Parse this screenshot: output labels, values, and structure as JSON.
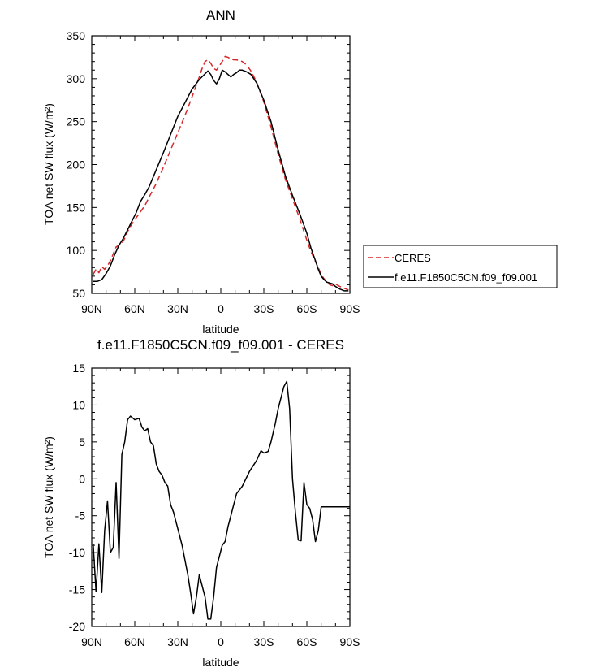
{
  "chart_data": [
    {
      "type": "line",
      "title": "ANN",
      "xlabel": "latitude",
      "ylabel": "TOA net SW flux (W/m²)",
      "xlim": [
        -90,
        90
      ],
      "ylim": [
        50,
        350
      ],
      "x_tick_values": [
        -90,
        -60,
        -30,
        0,
        30,
        60,
        90
      ],
      "x_tick_labels": [
        "90N",
        "60N",
        "30N",
        "0",
        "30S",
        "60S",
        "90S"
      ],
      "y_tick_values": [
        50,
        100,
        150,
        200,
        250,
        300,
        350
      ],
      "y_tick_labels": [
        "50",
        "100",
        "150",
        "200",
        "250",
        "300",
        "350"
      ],
      "grid": false,
      "legend_position": "right",
      "colors": {
        "CERES": "#d62728",
        "model": "#000000"
      },
      "series": [
        {
          "name": "CERES",
          "style": "dashed",
          "x": [
            -89,
            -87,
            -85,
            -83,
            -81,
            -79,
            -77,
            -75,
            -73,
            -71,
            -69,
            -67,
            -65,
            -63,
            -61,
            -59,
            -56,
            -53,
            -50,
            -45,
            -40,
            -35,
            -30,
            -25,
            -20,
            -17,
            -15,
            -13,
            -11,
            -9,
            -7,
            -5,
            -3,
            -1,
            1,
            3,
            5,
            7,
            9,
            11,
            13,
            15,
            18,
            21,
            25,
            30,
            35,
            40,
            45,
            50,
            55,
            60,
            63,
            66,
            68,
            70,
            72,
            74,
            76,
            78,
            80,
            83,
            86,
            89
          ],
          "values": [
            72,
            78,
            74,
            81,
            78,
            82,
            88,
            96,
            104,
            106,
            108,
            114,
            122,
            128,
            133,
            138,
            145,
            152,
            162,
            178,
            197,
            217,
            237,
            257,
            279,
            293,
            302,
            312,
            320,
            322,
            318,
            312,
            310,
            315,
            320,
            326,
            325,
            323,
            322,
            322,
            321,
            320,
            316,
            309,
            296,
            273,
            244,
            212,
            183,
            160,
            137,
            112,
            98,
            87,
            80,
            72,
            67,
            63,
            60,
            59,
            61,
            58,
            56,
            54
          ]
        },
        {
          "name": "f.e11.F1850C5CN.f09_f09.001",
          "style": "solid",
          "x": [
            -89,
            -86,
            -83,
            -80,
            -77,
            -74,
            -71,
            -68,
            -65,
            -62,
            -59,
            -56,
            -53,
            -50,
            -45,
            -40,
            -35,
            -30,
            -25,
            -20,
            -15,
            -12,
            -9,
            -7,
            -5,
            -3,
            -1,
            1,
            3,
            5,
            7,
            9,
            11,
            13,
            15,
            18,
            21,
            25,
            30,
            35,
            40,
            45,
            50,
            55,
            60,
            63,
            66,
            68,
            70,
            72,
            74,
            76,
            78,
            80,
            83,
            86,
            89
          ],
          "values": [
            64,
            64,
            66,
            73,
            82,
            95,
            106,
            114,
            124,
            134,
            144,
            157,
            165,
            174,
            194,
            214,
            235,
            256,
            272,
            288,
            299,
            304,
            309,
            305,
            298,
            294,
            300,
            310,
            308,
            305,
            302,
            305,
            307,
            310,
            310,
            308,
            305,
            295,
            275,
            250,
            217,
            187,
            164,
            143,
            120,
            102,
            88,
            78,
            70,
            66,
            63,
            62,
            61,
            58,
            55,
            53,
            53
          ]
        }
      ]
    },
    {
      "type": "line",
      "title": "f.e11.F1850C5CN.f09_f09.001 - CERES",
      "xlabel": "latitude",
      "ylabel": "TOA net SW flux (W/m²)",
      "xlim": [
        -90,
        90
      ],
      "ylim": [
        -20,
        15
      ],
      "x_tick_values": [
        -90,
        -60,
        -30,
        0,
        30,
        60,
        90
      ],
      "x_tick_labels": [
        "90N",
        "60N",
        "30N",
        "0",
        "30S",
        "60S",
        "90S"
      ],
      "y_tick_values": [
        -20,
        -15,
        -10,
        -5,
        0,
        5,
        10,
        15
      ],
      "y_tick_labels": [
        "-20",
        "-15",
        "-10",
        "-5",
        "0",
        "5",
        "10",
        "15"
      ],
      "grid": false,
      "colors": {
        "difference": "#000000"
      },
      "series": [
        {
          "style": "solid",
          "x": [
            -89,
            -87,
            -85,
            -83,
            -81,
            -79,
            -77,
            -75,
            -73,
            -71,
            -69,
            -67,
            -65,
            -63,
            -60,
            -57,
            -55,
            -53,
            -51,
            -49,
            -47,
            -45,
            -43,
            -41,
            -39,
            -37,
            -35,
            -33,
            -31,
            -29,
            -27,
            -25,
            -23,
            -21,
            -19,
            -17,
            -15,
            -13,
            -11,
            -9,
            -7,
            -5,
            -3,
            -1,
            1,
            3,
            5,
            7,
            9,
            11,
            15,
            20,
            25,
            28,
            30,
            33,
            35,
            38,
            40,
            42,
            44,
            46,
            48,
            50,
            52,
            54,
            56,
            58,
            60,
            62,
            64,
            66,
            68,
            70,
            72,
            74,
            76,
            78,
            80,
            82,
            84,
            86,
            88,
            90
          ],
          "values": [
            -8.8,
            -15.3,
            -8.8,
            -15.4,
            -7.0,
            -3.0,
            -10.0,
            -9.3,
            -0.5,
            -10.8,
            3.3,
            5.0,
            8.0,
            8.5,
            8.0,
            8.2,
            7.0,
            6.5,
            6.8,
            5.0,
            4.5,
            2.0,
            1.0,
            0.5,
            -0.5,
            -1.0,
            -3.5,
            -4.5,
            -6.0,
            -7.5,
            -9.0,
            -11.0,
            -13.0,
            -15.5,
            -18.3,
            -16.0,
            -13.0,
            -14.5,
            -16.0,
            -19.0,
            -19.0,
            -16.0,
            -12.0,
            -10.5,
            -9.0,
            -8.5,
            -6.5,
            -5.0,
            -3.5,
            -2.0,
            -1.0,
            1.0,
            2.5,
            3.8,
            3.5,
            3.7,
            5.0,
            7.5,
            9.5,
            11.0,
            12.5,
            13.2,
            9.5,
            0.0,
            -4.5,
            -8.3,
            -8.4,
            -0.5,
            -3.5,
            -4.0,
            -5.5,
            -8.5,
            -7.0,
            -3.8,
            -3.8,
            -3.8,
            -3.8,
            -3.8,
            -3.8,
            -3.8,
            -3.8,
            -3.8,
            -3.8,
            -3.8
          ]
        }
      ]
    }
  ]
}
